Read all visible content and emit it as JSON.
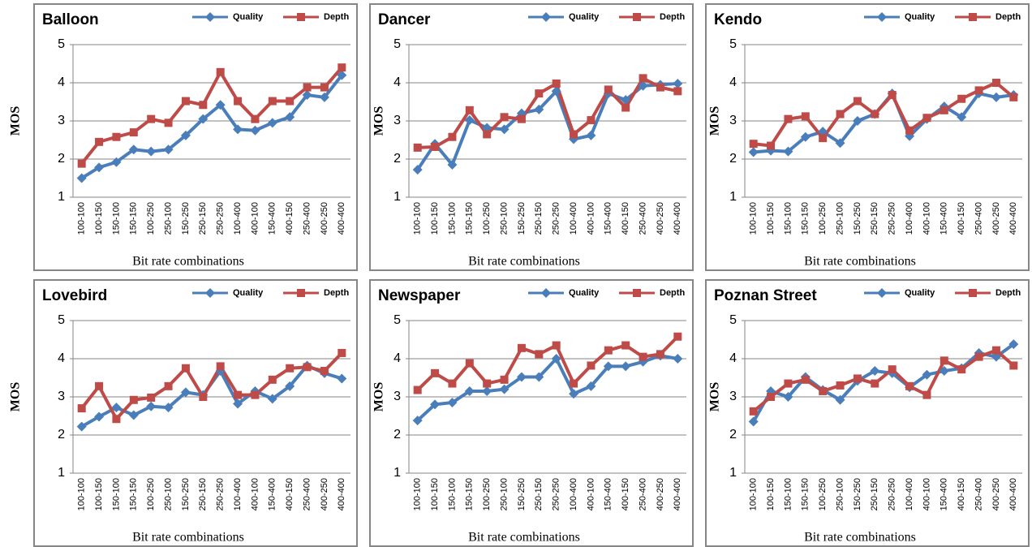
{
  "chart_data": [
    {
      "type": "line",
      "title": "Balloon",
      "xlabel": "Bit rate combinations",
      "ylabel": "MOS",
      "categories": [
        "100-100",
        "100-150",
        "150-100",
        "150-150",
        "100-250",
        "250-100",
        "150-250",
        "250-150",
        "250-250",
        "100-400",
        "400-100",
        "150-400",
        "400-150",
        "250-400",
        "400-250",
        "400-400"
      ],
      "series": [
        {
          "name": "Quality",
          "color": "#4a7ebb",
          "marker": "diamond",
          "values": [
            1.5,
            1.78,
            1.92,
            2.25,
            2.2,
            2.25,
            2.62,
            3.05,
            3.42,
            2.78,
            2.75,
            2.95,
            3.1,
            3.68,
            3.62,
            4.2
          ]
        },
        {
          "name": "Depth",
          "color": "#be4b48",
          "marker": "square",
          "values": [
            1.88,
            2.45,
            2.58,
            2.7,
            3.05,
            2.95,
            3.52,
            3.42,
            4.28,
            3.52,
            3.05,
            3.52,
            3.52,
            3.88,
            3.88,
            4.4
          ]
        }
      ],
      "ylim": [
        1,
        5
      ],
      "yticks": [
        1,
        2,
        3,
        4,
        5
      ],
      "grid": true
    },
    {
      "type": "line",
      "title": "Dancer",
      "xlabel": "Bit rate combinations",
      "ylabel": "MOS",
      "categories": [
        "100-100",
        "100-150",
        "150-100",
        "150-150",
        "100-250",
        "250-100",
        "150-250",
        "250-150",
        "250-250",
        "100-400",
        "400-100",
        "150-400",
        "400-150",
        "250-400",
        "400-250",
        "400-400"
      ],
      "series": [
        {
          "name": "Quality",
          "color": "#4a7ebb",
          "marker": "diamond",
          "values": [
            1.72,
            2.4,
            1.85,
            3.02,
            2.82,
            2.78,
            3.2,
            3.3,
            3.78,
            2.52,
            2.62,
            3.72,
            3.55,
            3.92,
            3.95,
            3.98
          ]
        },
        {
          "name": "Depth",
          "color": "#be4b48",
          "marker": "square",
          "values": [
            2.3,
            2.32,
            2.58,
            3.28,
            2.65,
            3.1,
            3.05,
            3.72,
            3.98,
            2.65,
            3.02,
            3.82,
            3.35,
            4.12,
            3.88,
            3.78
          ]
        }
      ],
      "ylim": [
        1,
        5
      ],
      "yticks": [
        1,
        2,
        3,
        4,
        5
      ],
      "grid": true
    },
    {
      "type": "line",
      "title": "Kendo",
      "xlabel": "Bit rate combinations",
      "ylabel": "MOS",
      "categories": [
        "100-100",
        "100-150",
        "150-100",
        "150-150",
        "100-250",
        "250-100",
        "150-250",
        "250-150",
        "250-250",
        "100-400",
        "400-100",
        "150-400",
        "400-150",
        "250-400",
        "400-250",
        "400-400"
      ],
      "series": [
        {
          "name": "Quality",
          "color": "#4a7ebb",
          "marker": "diamond",
          "values": [
            2.18,
            2.22,
            2.2,
            2.58,
            2.72,
            2.42,
            3.0,
            3.18,
            3.72,
            2.6,
            3.05,
            3.38,
            3.1,
            3.72,
            3.62,
            3.68
          ]
        },
        {
          "name": "Depth",
          "color": "#be4b48",
          "marker": "square",
          "values": [
            2.4,
            2.35,
            3.05,
            3.12,
            2.55,
            3.18,
            3.52,
            3.18,
            3.68,
            2.75,
            3.08,
            3.28,
            3.58,
            3.8,
            4.0,
            3.62
          ]
        }
      ],
      "ylim": [
        1,
        5
      ],
      "yticks": [
        1,
        2,
        3,
        4,
        5
      ],
      "grid": true
    },
    {
      "type": "line",
      "title": "Lovebird",
      "xlabel": "Bit rate combinations",
      "ylabel": "MOS",
      "categories": [
        "100-100",
        "100-150",
        "150-100",
        "150-150",
        "100-250",
        "250-100",
        "150-250",
        "250-150",
        "250-250",
        "100-400",
        "400-100",
        "150-400",
        "400-150",
        "250-400",
        "400-250",
        "400-400"
      ],
      "series": [
        {
          "name": "Quality",
          "color": "#4a7ebb",
          "marker": "diamond",
          "values": [
            2.22,
            2.48,
            2.72,
            2.52,
            2.75,
            2.72,
            3.12,
            3.05,
            3.68,
            2.82,
            3.15,
            2.95,
            3.28,
            3.82,
            3.62,
            3.48
          ]
        },
        {
          "name": "Depth",
          "color": "#be4b48",
          "marker": "square",
          "values": [
            2.7,
            3.28,
            2.42,
            2.92,
            2.98,
            3.28,
            3.75,
            3.0,
            3.8,
            3.05,
            3.05,
            3.45,
            3.75,
            3.78,
            3.68,
            4.15
          ]
        }
      ],
      "ylim": [
        1,
        5
      ],
      "yticks": [
        1,
        2,
        3,
        4,
        5
      ],
      "grid": true
    },
    {
      "type": "line",
      "title": "Newspaper",
      "xlabel": "Bit rate combinations",
      "ylabel": "MOS",
      "categories": [
        "100-100",
        "100-150",
        "150-100",
        "150-150",
        "100-250",
        "250-100",
        "150-250",
        "250-150",
        "250-250",
        "100-400",
        "400-100",
        "150-400",
        "400-150",
        "250-400",
        "400-250",
        "400-400"
      ],
      "series": [
        {
          "name": "Quality",
          "color": "#4a7ebb",
          "marker": "diamond",
          "values": [
            2.38,
            2.8,
            2.85,
            3.15,
            3.15,
            3.2,
            3.52,
            3.52,
            4.0,
            3.08,
            3.28,
            3.8,
            3.8,
            3.92,
            4.08,
            4.0
          ]
        },
        {
          "name": "Depth",
          "color": "#be4b48",
          "marker": "square",
          "values": [
            3.18,
            3.62,
            3.35,
            3.88,
            3.35,
            3.45,
            4.28,
            4.12,
            4.35,
            3.35,
            3.82,
            4.22,
            4.35,
            4.05,
            4.12,
            4.58
          ]
        }
      ],
      "ylim": [
        1,
        5
      ],
      "yticks": [
        1,
        2,
        3,
        4,
        5
      ],
      "grid": true
    },
    {
      "type": "line",
      "title": "Poznan Street",
      "xlabel": "Bit rate combinations",
      "ylabel": "MOS",
      "categories": [
        "100-100",
        "100-150",
        "150-100",
        "150-150",
        "100-250",
        "250-100",
        "150-250",
        "250-150",
        "250-250",
        "100-400",
        "400-100",
        "150-400",
        "400-150",
        "250-400",
        "400-250",
        "400-400"
      ],
      "series": [
        {
          "name": "Quality",
          "color": "#4a7ebb",
          "marker": "diamond",
          "values": [
            2.35,
            3.15,
            3.0,
            3.52,
            3.18,
            2.92,
            3.42,
            3.68,
            3.62,
            3.25,
            3.58,
            3.68,
            3.75,
            4.15,
            4.05,
            4.38
          ]
        },
        {
          "name": "Depth",
          "color": "#be4b48",
          "marker": "square",
          "values": [
            2.62,
            3.0,
            3.35,
            3.45,
            3.15,
            3.3,
            3.48,
            3.35,
            3.72,
            3.28,
            3.05,
            3.95,
            3.72,
            4.05,
            4.22,
            3.82
          ]
        }
      ],
      "ylim": [
        1,
        5
      ],
      "yticks": [
        1,
        2,
        3,
        4,
        5
      ],
      "grid": true
    }
  ]
}
